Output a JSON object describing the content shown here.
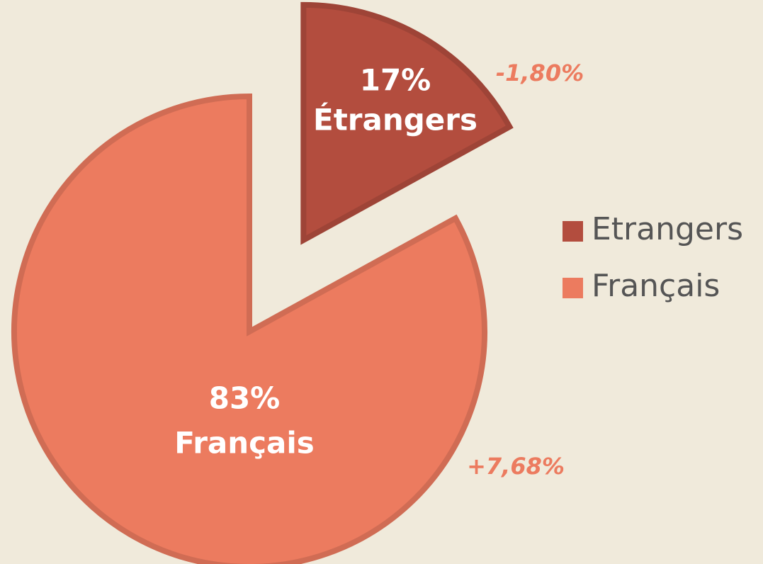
{
  "chart_data": {
    "type": "pie",
    "categories": [
      "Etrangers",
      "Français"
    ],
    "values": [
      17,
      83
    ],
    "value_labels": [
      "17%",
      "83%"
    ],
    "slice_labels": [
      "Étrangers",
      "Français"
    ],
    "annotations": [
      "-1,80%",
      "+7,68%"
    ],
    "colors": [
      "#b34d3e",
      "#ec7b5f"
    ],
    "legend": "right"
  }
}
